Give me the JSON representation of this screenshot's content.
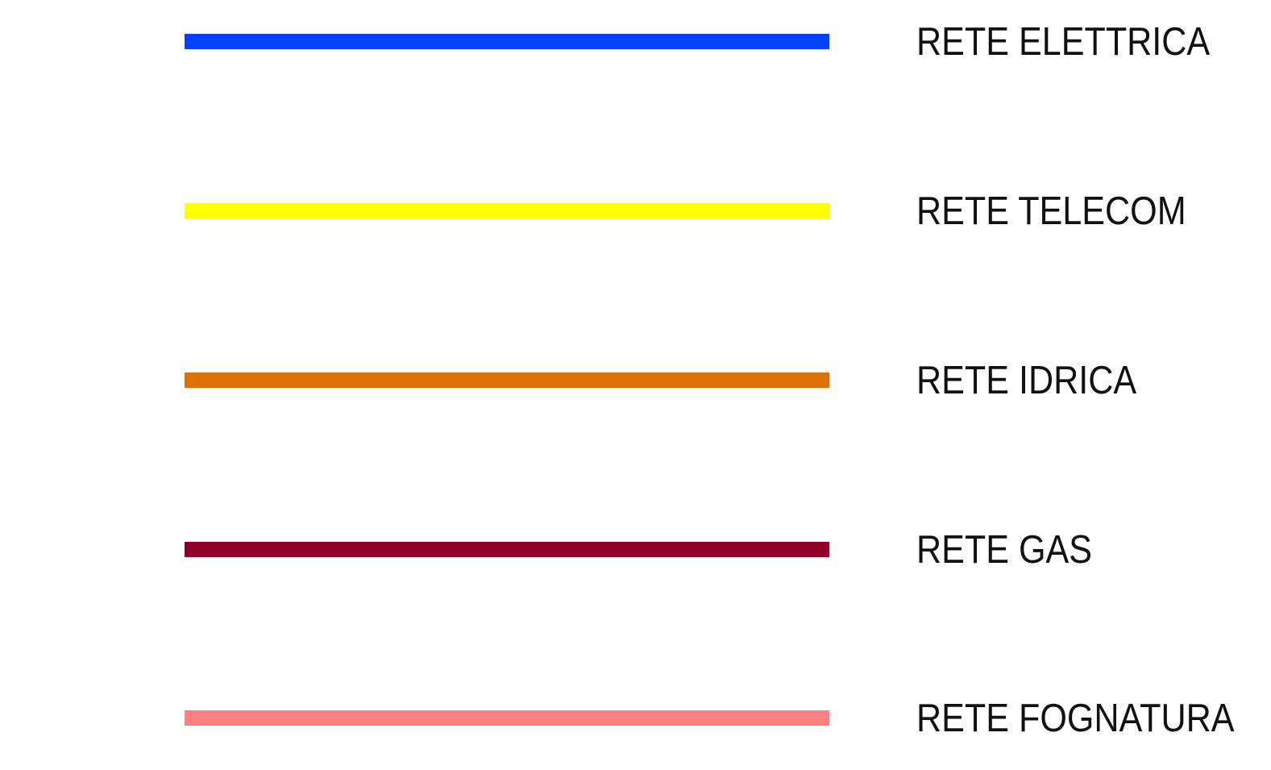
{
  "legend": {
    "items": [
      {
        "label": "RETE ELETTRICA",
        "color": "#0040ff"
      },
      {
        "label": "RETE TELECOM",
        "color": "#ffff00"
      },
      {
        "label": "RETE IDRICA",
        "color": "#df7005"
      },
      {
        "label": "RETE GAS",
        "color": "#910028"
      },
      {
        "label": "RETE FOGNATURA",
        "color": "#ff8080"
      }
    ]
  }
}
